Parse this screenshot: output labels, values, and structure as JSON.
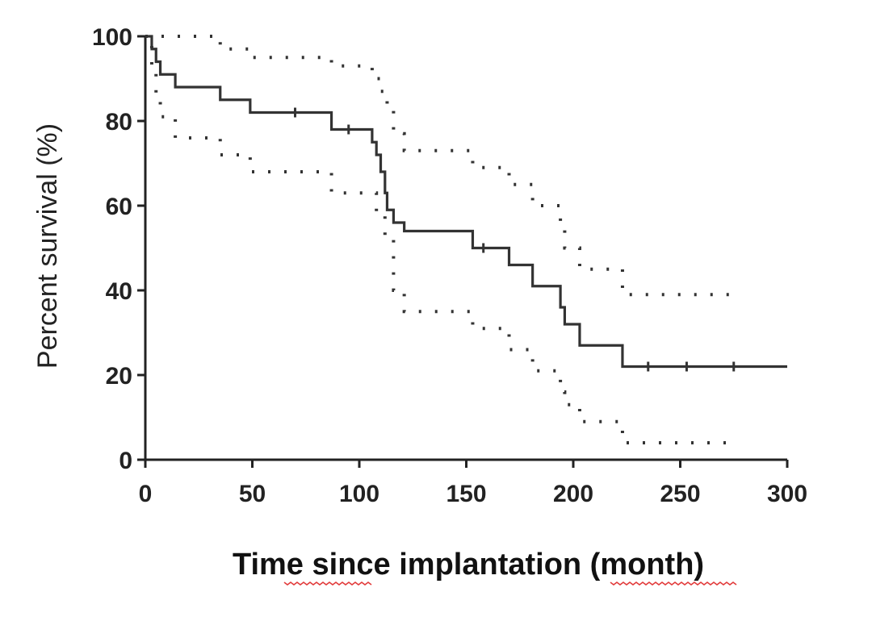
{
  "chart_data": {
    "type": "line",
    "subtype": "kaplan-meier step curve with confidence bands",
    "xlabel": "Time since implantation (month)",
    "ylabel": "Percent survival (%)",
    "xlim": [
      0,
      300
    ],
    "ylim": [
      0,
      100
    ],
    "xticks": [
      "0",
      "50",
      "100",
      "150",
      "200",
      "250",
      "300"
    ],
    "yticks": [
      "0",
      "20",
      "40",
      "60",
      "80",
      "100"
    ],
    "grid": false,
    "legend": "none",
    "series": [
      {
        "style": "solid",
        "x": [
          0,
          3,
          5,
          7,
          14,
          35,
          49,
          87,
          106,
          108,
          110,
          112,
          113,
          116,
          121,
          153,
          170,
          181,
          194,
          196,
          203,
          223,
          300
        ],
        "y": [
          100,
          97,
          94,
          91,
          88,
          85,
          82,
          78,
          75,
          72,
          68,
          63,
          59,
          56,
          54,
          50,
          46,
          41,
          36,
          32,
          27,
          22,
          22
        ]
      },
      {
        "style": "dotted",
        "x": [
          0,
          35,
          49,
          87,
          106,
          110,
          113,
          116,
          121,
          153,
          170,
          181,
          194,
          196,
          203,
          223,
          275
        ],
        "y": [
          100,
          97,
          95,
          93,
          90,
          87,
          83,
          77,
          73,
          69,
          65,
          60,
          55,
          50,
          45,
          39,
          39
        ]
      },
      {
        "style": "dotted",
        "x": [
          0,
          3,
          5,
          7,
          14,
          35,
          49,
          87,
          108,
          112,
          116,
          121,
          153,
          170,
          181,
          194,
          196,
          203,
          223,
          275
        ],
        "y": [
          100,
          92,
          86,
          81,
          76,
          72,
          68,
          63,
          58,
          52,
          40,
          35,
          31,
          26,
          21,
          16,
          13,
          9,
          4,
          4
        ]
      }
    ],
    "censor_marks": [
      {
        "x": 70,
        "y": 82
      },
      {
        "x": 95,
        "y": 78
      },
      {
        "x": 158,
        "y": 50
      },
      {
        "x": 235,
        "y": 22
      },
      {
        "x": 253,
        "y": 22
      },
      {
        "x": 275,
        "y": 22
      }
    ]
  }
}
